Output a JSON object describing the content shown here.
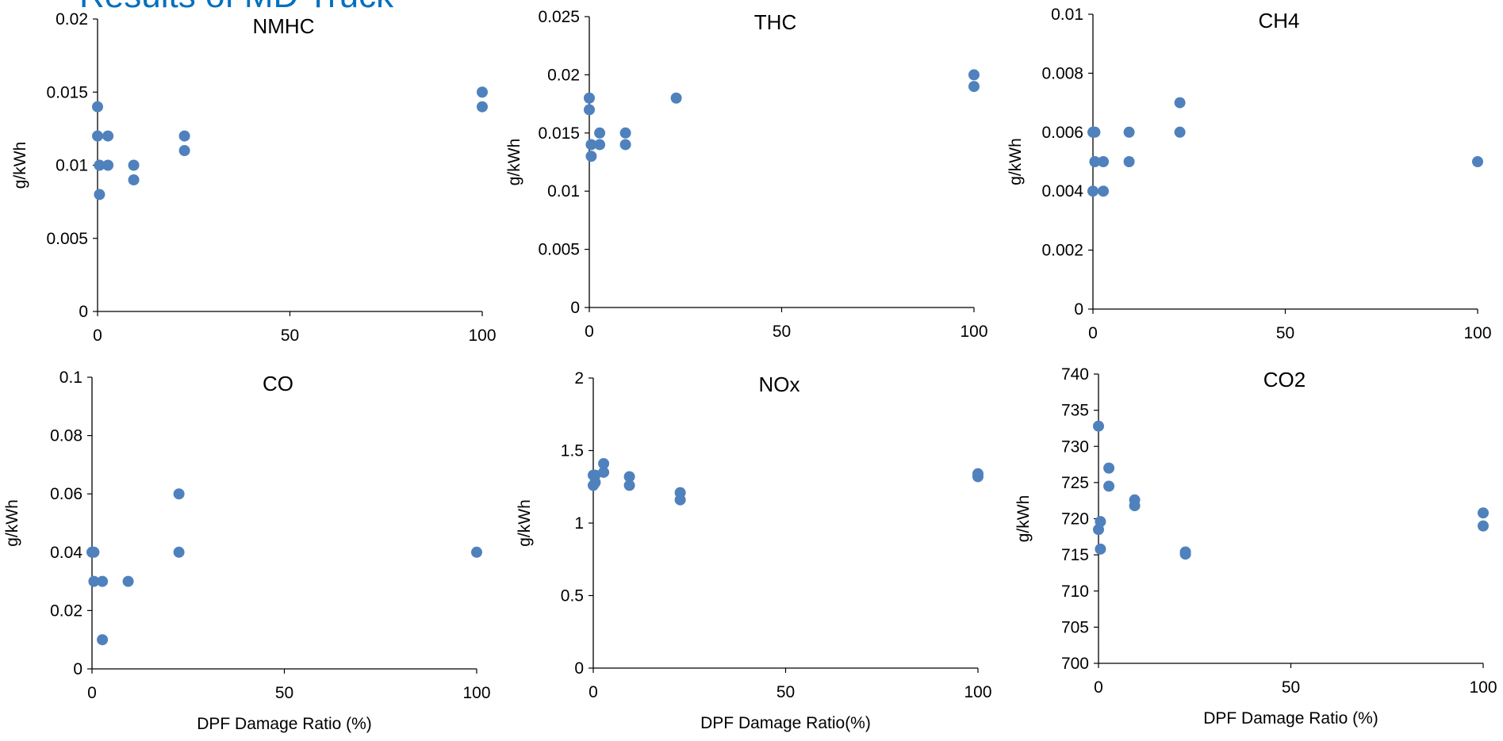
{
  "slide": {
    "title": "Results of MD Truck"
  },
  "marker_color": "#4F81BD",
  "chart_data": [
    {
      "type": "scatter",
      "title": "NMHC",
      "ylabel": "g/kWh",
      "xlabel": "",
      "xlim": [
        0,
        100
      ],
      "ylim": [
        0,
        0.02
      ],
      "xticks": [
        0,
        50,
        100
      ],
      "xtick_labels": [
        "0",
        "50",
        "100"
      ],
      "yticks": [
        0,
        0.005,
        0.01,
        0.015,
        0.02
      ],
      "ytick_labels": [
        "0",
        "0.005",
        "0.01",
        "0.015",
        "0.02"
      ],
      "series": [
        {
          "points": [
            [
              0,
              0.014
            ],
            [
              0,
              0.012
            ],
            [
              0.5,
              0.01
            ],
            [
              0.5,
              0.008
            ],
            [
              2.7,
              0.012
            ],
            [
              2.7,
              0.01
            ],
            [
              9.4,
              0.01
            ],
            [
              9.4,
              0.009
            ],
            [
              22.6,
              0.012
            ],
            [
              22.6,
              0.011
            ],
            [
              100,
              0.015
            ],
            [
              100,
              0.014
            ]
          ]
        }
      ]
    },
    {
      "type": "scatter",
      "title": "THC",
      "ylabel": "g/kWh",
      "xlabel": "",
      "xlim": [
        0,
        100
      ],
      "ylim": [
        0,
        0.025
      ],
      "xticks": [
        0,
        50,
        100
      ],
      "xtick_labels": [
        "0",
        "50",
        "100"
      ],
      "yticks": [
        0,
        0.005,
        0.01,
        0.015,
        0.02,
        0.025
      ],
      "ytick_labels": [
        "0",
        "0.005",
        "0.01",
        "0.015",
        "0.02",
        "0.025"
      ],
      "series": [
        {
          "points": [
            [
              0,
              0.018
            ],
            [
              0,
              0.017
            ],
            [
              0.5,
              0.014
            ],
            [
              0.5,
              0.013
            ],
            [
              2.7,
              0.015
            ],
            [
              2.7,
              0.014
            ],
            [
              9.4,
              0.015
            ],
            [
              9.4,
              0.014
            ],
            [
              22.6,
              0.018
            ],
            [
              100,
              0.02
            ],
            [
              100,
              0.019
            ]
          ]
        }
      ]
    },
    {
      "type": "scatter",
      "title": "CH4",
      "ylabel": "g/kWh",
      "xlabel": "",
      "xlim": [
        0,
        100
      ],
      "ylim": [
        0,
        0.01
      ],
      "xticks": [
        0,
        50,
        100
      ],
      "xtick_labels": [
        "0",
        "50",
        "100"
      ],
      "yticks": [
        0,
        0.002,
        0.004,
        0.006,
        0.008,
        0.01
      ],
      "ytick_labels": [
        "0",
        "0.002",
        "0.004",
        "0.006",
        "0.008",
        "0.01"
      ],
      "series": [
        {
          "points": [
            [
              0,
              0.006
            ],
            [
              0.5,
              0.006
            ],
            [
              0.5,
              0.005
            ],
            [
              0,
              0.004
            ],
            [
              2.7,
              0.005
            ],
            [
              2.7,
              0.004
            ],
            [
              9.4,
              0.006
            ],
            [
              9.4,
              0.005
            ],
            [
              22.6,
              0.007
            ],
            [
              22.6,
              0.006
            ],
            [
              100,
              0.005
            ]
          ]
        }
      ]
    },
    {
      "type": "scatter",
      "title": "CO",
      "ylabel": "g/kWh",
      "xlabel": "DPF Damage Ratio (%)",
      "xlim": [
        0,
        100
      ],
      "ylim": [
        0,
        0.1
      ],
      "xticks": [
        0,
        50,
        100
      ],
      "xtick_labels": [
        "0",
        "50",
        "100"
      ],
      "yticks": [
        0,
        0.02,
        0.04,
        0.06,
        0.08,
        0.1
      ],
      "ytick_labels": [
        "0",
        "0.02",
        "0.04",
        "0.06",
        "0.08",
        "0.1"
      ],
      "series": [
        {
          "points": [
            [
              0,
              0.04
            ],
            [
              0.5,
              0.04
            ],
            [
              0.5,
              0.03
            ],
            [
              2.7,
              0.03
            ],
            [
              2.7,
              0.01
            ],
            [
              9.4,
              0.03
            ],
            [
              22.6,
              0.06
            ],
            [
              22.6,
              0.04
            ],
            [
              100,
              0.04
            ]
          ]
        }
      ]
    },
    {
      "type": "scatter",
      "title": "NOx",
      "ylabel": "g/kWh",
      "xlabel": "DPF Damage Ratio(%)",
      "xlim": [
        0,
        100
      ],
      "ylim": [
        0,
        2
      ],
      "xticks": [
        0,
        50,
        100
      ],
      "xtick_labels": [
        "0",
        "50",
        "100"
      ],
      "yticks": [
        0,
        0.5,
        1,
        1.5,
        2
      ],
      "ytick_labels": [
        "0",
        "0.5",
        "1",
        "1.5",
        "2"
      ],
      "series": [
        {
          "points": [
            [
              0,
              1.33
            ],
            [
              0.5,
              1.33
            ],
            [
              0,
              1.26
            ],
            [
              0.5,
              1.28
            ],
            [
              2.7,
              1.41
            ],
            [
              2.7,
              1.35
            ],
            [
              9.4,
              1.32
            ],
            [
              9.4,
              1.26
            ],
            [
              22.6,
              1.21
            ],
            [
              22.6,
              1.16
            ],
            [
              100,
              1.34
            ],
            [
              100,
              1.32
            ]
          ]
        }
      ]
    },
    {
      "type": "scatter",
      "title": "CO2",
      "ylabel": "g/kWh",
      "xlabel": "DPF Damage Ratio (%)",
      "xlim": [
        0,
        100
      ],
      "ylim": [
        700,
        740
      ],
      "xticks": [
        0,
        50,
        100
      ],
      "xtick_labels": [
        "0",
        "50",
        "100"
      ],
      "yticks": [
        700,
        705,
        710,
        715,
        720,
        725,
        730,
        735,
        740
      ],
      "ytick_labels": [
        "700",
        "705",
        "710",
        "715",
        "720",
        "725",
        "730",
        "735",
        "740"
      ],
      "series": [
        {
          "points": [
            [
              0,
              732.8
            ],
            [
              0.5,
              719.6
            ],
            [
              0,
              718.5
            ],
            [
              0.5,
              715.8
            ],
            [
              2.7,
              727.0
            ],
            [
              2.7,
              724.5
            ],
            [
              9.4,
              722.6
            ],
            [
              9.4,
              721.8
            ],
            [
              22.6,
              715.4
            ],
            [
              22.6,
              715.1
            ],
            [
              100,
              720.8
            ],
            [
              100,
              719.0
            ]
          ]
        }
      ]
    }
  ]
}
